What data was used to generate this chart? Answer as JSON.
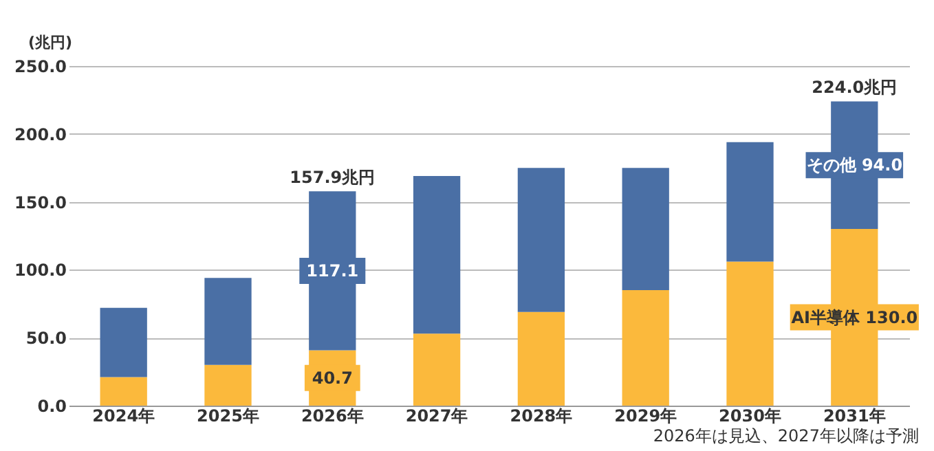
{
  "chart_data": {
    "type": "bar",
    "stacked": true,
    "ylabel": "(兆円)",
    "categories": [
      "2024年",
      "2025年",
      "2026年",
      "2027年",
      "2028年",
      "2029年",
      "2030年",
      "2031年"
    ],
    "series": [
      {
        "color": "#fbb93c",
        "values": [
          21,
          30,
          40.7,
          53,
          69,
          85,
          106,
          130.0
        ],
        "value_labels": [
          null,
          null,
          "40.7",
          null,
          null,
          null,
          null,
          "AI半導体 130.0"
        ]
      },
      {
        "color": "#4a6fa5",
        "values": [
          51,
          64,
          117.1,
          116,
          106,
          90,
          88,
          94.0
        ],
        "value_labels": [
          null,
          null,
          "117.1",
          null,
          null,
          null,
          null,
          "その他 94.0"
        ]
      }
    ],
    "totals": [
      null,
      null,
      "157.9兆円",
      null,
      null,
      null,
      null,
      "224.0兆円"
    ],
    "ylim": [
      0,
      250
    ],
    "yticks": [
      {
        "value": 0,
        "label": "0.0"
      },
      {
        "value": 50,
        "label": "50.0"
      },
      {
        "value": 100,
        "label": "100.0"
      },
      {
        "value": 150,
        "label": "150.0"
      },
      {
        "value": 200,
        "label": "200.0"
      },
      {
        "value": 250,
        "label": "250.0"
      }
    ],
    "grid": "y",
    "legend": false,
    "annotations": [
      "2026年は見込、2027年以降は予測"
    ]
  }
}
